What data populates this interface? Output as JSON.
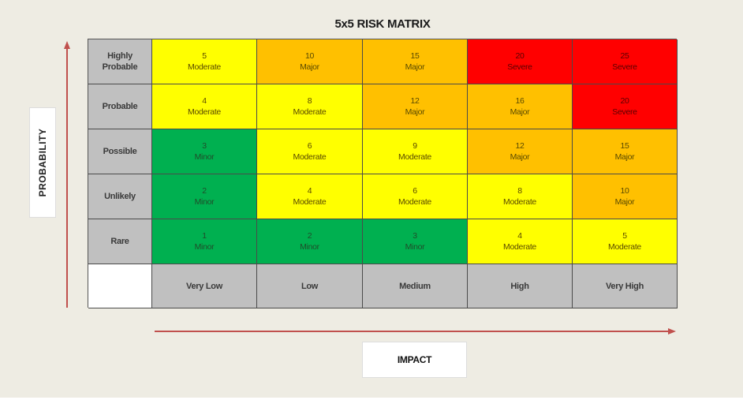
{
  "title": "5x5 RISK MATRIX",
  "axes": {
    "y_label": "PROBABILITY",
    "x_label": "IMPACT",
    "arrow_color": "#c0504d"
  },
  "rows": [
    {
      "label_line1": "Highly",
      "label_line2": "Probable"
    },
    {
      "label_line1": "Probable",
      "label_line2": ""
    },
    {
      "label_line1": "Possible",
      "label_line2": ""
    },
    {
      "label_line1": "Unlikely",
      "label_line2": ""
    },
    {
      "label_line1": "Rare",
      "label_line2": ""
    }
  ],
  "columns": [
    "Very Low",
    "Low",
    "Medium",
    "High",
    "Very High"
  ],
  "colors": {
    "Minor": "#00b050",
    "Moderate": "#ffff00",
    "Major": "#ffc000",
    "Severe": "#ff0000",
    "label_bg": "#c0c0c0"
  },
  "cells": [
    [
      {
        "score": "5",
        "level": "Moderate"
      },
      {
        "score": "10",
        "level": "Major"
      },
      {
        "score": "15",
        "level": "Major"
      },
      {
        "score": "20",
        "level": "Severe"
      },
      {
        "score": "25",
        "level": "Severe"
      }
    ],
    [
      {
        "score": "4",
        "level": "Moderate"
      },
      {
        "score": "8",
        "level": "Moderate"
      },
      {
        "score": "12",
        "level": "Major"
      },
      {
        "score": "16",
        "level": "Major"
      },
      {
        "score": "20",
        "level": "Severe"
      }
    ],
    [
      {
        "score": "3",
        "level": "Minor"
      },
      {
        "score": "6",
        "level": "Moderate"
      },
      {
        "score": "9",
        "level": "Moderate"
      },
      {
        "score": "12",
        "level": "Major"
      },
      {
        "score": "15",
        "level": "Major"
      }
    ],
    [
      {
        "score": "2",
        "level": "Minor"
      },
      {
        "score": "4",
        "level": "Moderate"
      },
      {
        "score": "6",
        "level": "Moderate"
      },
      {
        "score": "8",
        "level": "Moderate"
      },
      {
        "score": "10",
        "level": "Major"
      }
    ],
    [
      {
        "score": "1",
        "level": "Minor"
      },
      {
        "score": "2",
        "level": "Minor"
      },
      {
        "score": "3",
        "level": "Minor"
      },
      {
        "score": "4",
        "level": "Moderate"
      },
      {
        "score": "5",
        "level": "Moderate"
      }
    ]
  ]
}
